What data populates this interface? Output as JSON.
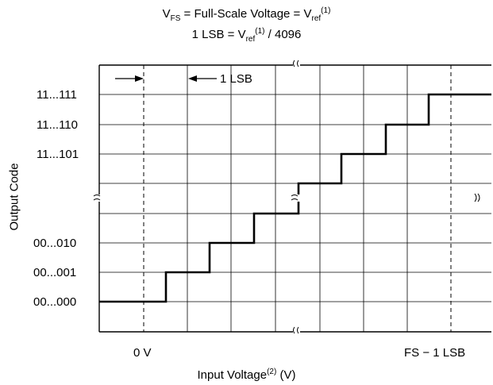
{
  "title": {
    "line1": {
      "v": "V",
      "fs_sub": "FS",
      "middle": " = Full-Scale Voltage = V",
      "ref_sub": "ref",
      "ref_sup": "(1)"
    },
    "line2": {
      "pre": "1 LSB = V",
      "ref_sub": "ref",
      "ref_sup": "(1)",
      "post": " / 4096"
    }
  },
  "annotation": {
    "lsb": "1 LSB"
  },
  "axes": {
    "y_label": "Output Code",
    "y_ticks": [
      "11...111",
      "11...110",
      "11...101",
      "00...010",
      "00...001",
      "00...000"
    ],
    "x_label_main": "Input Voltage",
    "x_label_sup": "(2)",
    "x_label_unit": " (V)",
    "x_ticks": [
      "0 V",
      "FS − 1 LSB"
    ]
  },
  "style": {
    "line_color": "#000000",
    "background": "#ffffff"
  }
}
